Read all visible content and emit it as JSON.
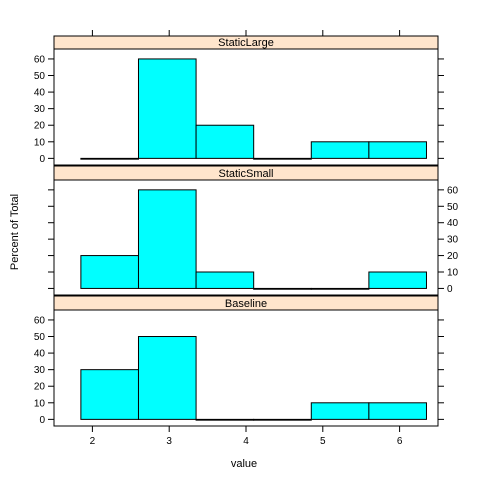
{
  "colors": {
    "bar_fill": "#00ffff",
    "bar_stroke": "#000000",
    "strip_fill": "#ffe5cc",
    "frame": "#000000",
    "background": "#ffffff"
  },
  "chart_data": {
    "type": "bar",
    "subtype": "trellis histogram (lattice), percent of total, three stacked panels",
    "xlabel": "value",
    "ylabel": "Percent of Total",
    "xlim": [
      1.5,
      6.5
    ],
    "ylim": [
      -4,
      66
    ],
    "x_ticks": [
      "2",
      "3",
      "4",
      "5",
      "6"
    ],
    "y_ticks": [
      "0",
      "10",
      "20",
      "30",
      "40",
      "50",
      "60"
    ],
    "bin_edges": [
      1.85,
      2.6,
      3.35,
      4.1,
      4.85,
      5.6,
      6.35
    ],
    "panels": [
      {
        "name": "StaticLarge",
        "values": [
          0,
          60,
          20,
          0,
          10,
          10
        ],
        "y_tick_side": "left"
      },
      {
        "name": "StaticSmall",
        "values": [
          20,
          60,
          10,
          0,
          0,
          10
        ],
        "y_tick_side": "right"
      },
      {
        "name": "Baseline",
        "values": [
          30,
          50,
          0,
          0,
          10,
          10
        ],
        "y_tick_side": "left"
      }
    ]
  }
}
